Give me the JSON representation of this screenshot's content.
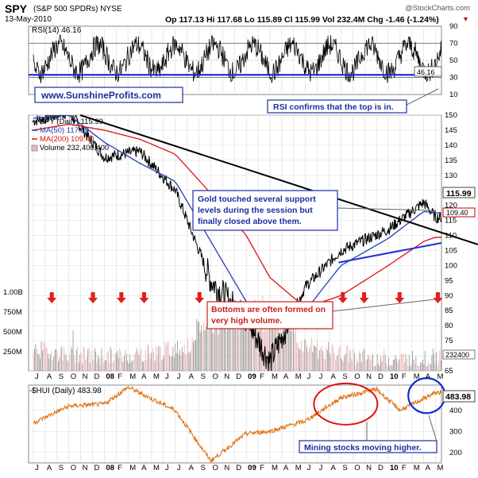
{
  "header": {
    "symbol": "SPY",
    "name": "(S&P 500 SPDRs) NYSE",
    "date": "13-May-2010",
    "quote": "Op 117.13  Hi 117.68  Lo 115.89  Cl 115.99  Vol 232.4M  Chg -1.46 (-1.24%)",
    "chg_marker": "▼",
    "watermark": "@StockCharts.com"
  },
  "rsi_panel": {
    "label": "RSI(14) 46.16",
    "value_badge": "46.16",
    "ticks": [
      "90",
      "70",
      "50",
      "30",
      "10"
    ],
    "website": "www.SunshineProfits.com",
    "callout": "RSI confirms that the top is in."
  },
  "price_panel": {
    "legend": [
      "SPY (Daily) 115.99",
      "MA(50) 117.50",
      "MA(200) 109.40",
      "Volume 232,400,400"
    ],
    "price_ticks": [
      "150",
      "145",
      "140",
      "135",
      "130",
      "125",
      "120",
      "115",
      "110",
      "105",
      "100",
      "95",
      "90",
      "85",
      "80",
      "75",
      "70",
      "65"
    ],
    "volume_ticks": [
      "1.00B",
      "750M",
      "500M",
      "250M"
    ],
    "badges": {
      "close": "115.99",
      "ma200": "109.40",
      "volume": "232400"
    },
    "support_callout": "Gold touched several support levels during the session but finally closed above them.",
    "volume_callout": "Bottoms are often formed on very high volume."
  },
  "hui_panel": {
    "label": "$HUI (Daily) 483.98",
    "value_badge": "483.98",
    "ticks": [
      "400",
      "300",
      "200"
    ],
    "callout": "Mining stocks moving higher."
  },
  "x_axis": {
    "months": [
      "J",
      "A",
      "S",
      "O",
      "N",
      "D",
      "08",
      "F",
      "M",
      "A",
      "M",
      "J",
      "J",
      "A",
      "S",
      "O",
      "N",
      "D",
      "09",
      "F",
      "M",
      "A",
      "M",
      "J",
      "J",
      "A",
      "S",
      "O",
      "N",
      "D",
      "10",
      "F",
      "M",
      "A",
      "M"
    ]
  },
  "colors": {
    "price_line": "#000000",
    "ma50": "#1f3fb4",
    "ma200": "#e01010",
    "volume_bars": "#e8b8b8",
    "hui_line": "#e07010",
    "support_lines": "#1f2fd8",
    "circle_red": "#e01010",
    "circle_blue": "#1030d0",
    "annotation_text": "#1a2fa0",
    "arrows": "#e02020"
  },
  "chart_data": {
    "type": "line",
    "title": "SPY (S&P 500 SPDRs) NYSE",
    "x_range": [
      "2007-07",
      "2010-05"
    ],
    "x": [
      "2007-07",
      "2007-10",
      "2008-01",
      "2008-04",
      "2008-07",
      "2008-10",
      "2009-01",
      "2009-03",
      "2009-06",
      "2009-09",
      "2010-01",
      "2010-04",
      "2010-05"
    ],
    "series": [
      {
        "name": "SPY (Daily)",
        "values": [
          148,
          151,
          136,
          138,
          125,
          95,
          82,
          68,
          93,
          105,
          112,
          121,
          116
        ]
      },
      {
        "name": "MA(50)",
        "values": [
          149,
          150,
          141,
          134,
          128,
          108,
          88,
          80,
          85,
          100,
          109,
          118,
          117.5
        ]
      },
      {
        "name": "MA(200)",
        "values": [
          145,
          147,
          145,
          142,
          137,
          124,
          110,
          96,
          86,
          90,
          100,
          108,
          109.4
        ]
      }
    ],
    "ylim": [
      65,
      150
    ],
    "rsi": {
      "ylim": [
        10,
        90
      ],
      "levels": [
        70,
        50,
        30
      ],
      "last": 46.16
    },
    "hui": {
      "name": "$HUI (Daily)",
      "x": [
        "2007-07",
        "2007-10",
        "2008-01",
        "2008-03",
        "2008-07",
        "2008-10",
        "2009-01",
        "2009-03",
        "2009-06",
        "2009-09",
        "2009-12",
        "2010-02",
        "2010-05"
      ],
      "values": [
        340,
        420,
        430,
        510,
        400,
        160,
        290,
        300,
        350,
        460,
        500,
        400,
        484
      ],
      "ylim": [
        150,
        520
      ],
      "last": 483.98
    },
    "volume_ylim": [
      0,
      1000000000
    ],
    "volume_last": 232400400
  }
}
